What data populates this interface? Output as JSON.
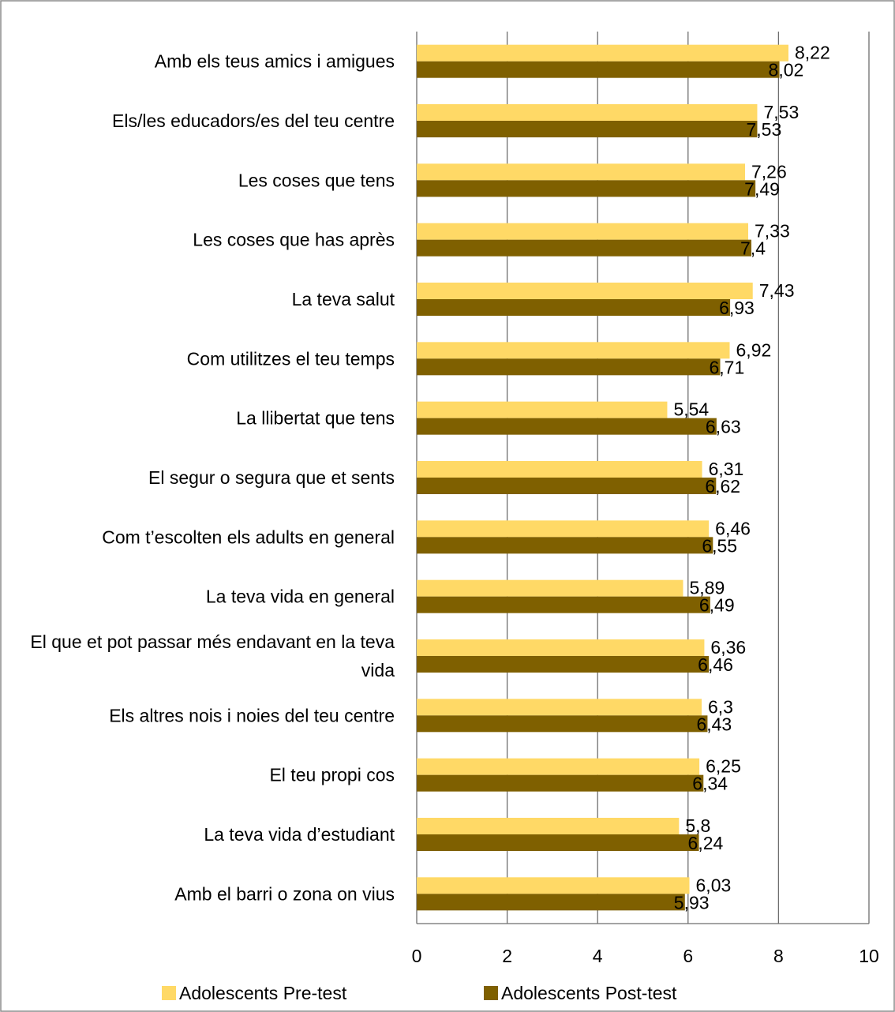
{
  "chart_data": {
    "type": "bar",
    "orientation": "horizontal",
    "categories": [
      "Amb els teus amics i amigues",
      "Els/les educadors/es del teu centre",
      "Les coses que tens",
      "Les coses que has après",
      "La teva salut",
      "Com utilitzes el teu temps",
      "La llibertat que tens",
      "El segur o segura que et sents",
      "Com t’escolten els adults en general",
      "La teva vida en general",
      "El que et pot passar més endavant en la teva vida",
      "Els altres nois i noies del teu centre",
      "El teu propi cos",
      "La teva vida d’estudiant",
      "Amb el barri o zona on vius"
    ],
    "series": [
      {
        "name": "Adolescents Pre-test",
        "color": "#ffd966",
        "values": [
          8.22,
          7.53,
          7.26,
          7.33,
          7.43,
          6.92,
          5.54,
          6.31,
          6.46,
          5.89,
          6.36,
          6.3,
          6.25,
          5.8,
          6.03
        ],
        "value_labels": [
          "8,22",
          "7,53",
          "7,26",
          "7,33",
          "7,43",
          "6,92",
          "5,54",
          "6,31",
          "6,46",
          "5,89",
          "6,36",
          "6,3",
          "6,25",
          "5,8",
          "6,03"
        ]
      },
      {
        "name": "Adolescents Post-test",
        "color": "#7f6000",
        "values": [
          8.02,
          7.53,
          7.49,
          7.4,
          6.93,
          6.71,
          6.63,
          6.62,
          6.55,
          6.49,
          6.46,
          6.43,
          6.34,
          6.24,
          5.93
        ],
        "value_labels": [
          "8,02",
          "7,53",
          "7,49",
          "7,4",
          "6,93",
          "6,71",
          "6,63",
          "6,62",
          "6,55",
          "6,49",
          "6,46",
          "6,43",
          "6,34",
          "6,24",
          "5,93"
        ]
      }
    ],
    "xlim": [
      0,
      10
    ],
    "xticks": [
      0,
      2,
      4,
      6,
      8,
      10
    ],
    "grid": true,
    "legend_position": "bottom"
  }
}
